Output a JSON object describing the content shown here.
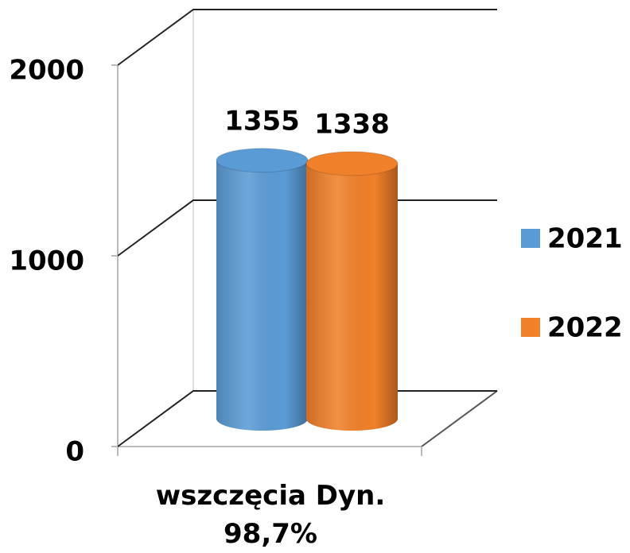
{
  "chart_data": {
    "type": "bar3d",
    "categories": [
      "wszczęcia Dyn. 98,7%"
    ],
    "series": [
      {
        "name": "2021",
        "color": "#5b9bd5",
        "values": [
          1355
        ]
      },
      {
        "name": "2022",
        "color": "#f0802a",
        "values": [
          1338
        ]
      }
    ],
    "ylim": [
      0,
      2000
    ],
    "yticks": [
      0,
      1000,
      2000
    ],
    "grid": true,
    "legend": "right"
  }
}
